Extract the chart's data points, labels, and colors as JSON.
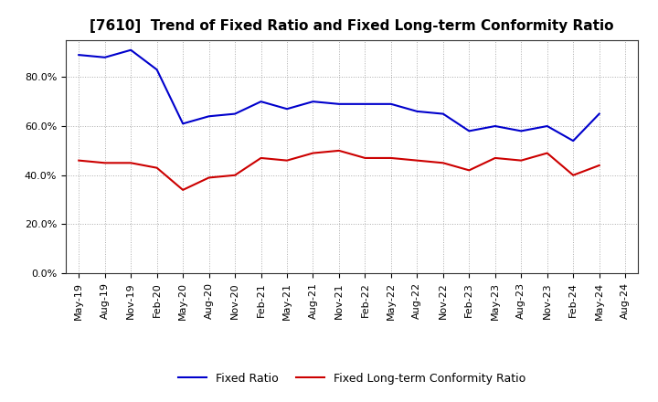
{
  "title": "[7610]  Trend of Fixed Ratio and Fixed Long-term Conformity Ratio",
  "x_labels": [
    "May-19",
    "Aug-19",
    "Nov-19",
    "Feb-20",
    "May-20",
    "Aug-20",
    "Nov-20",
    "Feb-21",
    "May-21",
    "Aug-21",
    "Nov-21",
    "Feb-22",
    "May-22",
    "Aug-22",
    "Nov-22",
    "Feb-23",
    "May-23",
    "Aug-23",
    "Nov-23",
    "Feb-24",
    "May-24",
    "Aug-24"
  ],
  "fixed_ratio": [
    89,
    88,
    91,
    83,
    61,
    64,
    65,
    70,
    67,
    70,
    69,
    69,
    69,
    66,
    65,
    58,
    60,
    58,
    60,
    54,
    65,
    null
  ],
  "fixed_lt_ratio": [
    46,
    45,
    45,
    43,
    34,
    39,
    40,
    47,
    46,
    49,
    50,
    47,
    47,
    46,
    45,
    42,
    47,
    46,
    49,
    40,
    44,
    null
  ],
  "ylim": [
    0,
    95
  ],
  "yticks": [
    0,
    20,
    40,
    60,
    80
  ],
  "ytick_labels": [
    "0.0%",
    "20.0%",
    "40.0%",
    "60.0%",
    "80.0%"
  ],
  "line_color_fixed": "#0000CC",
  "line_color_lt": "#CC0000",
  "background_color": "#FFFFFF",
  "grid_color": "#888888",
  "legend_labels": [
    "Fixed Ratio",
    "Fixed Long-term Conformity Ratio"
  ],
  "title_fontsize": 11,
  "tick_fontsize": 8,
  "legend_fontsize": 9
}
